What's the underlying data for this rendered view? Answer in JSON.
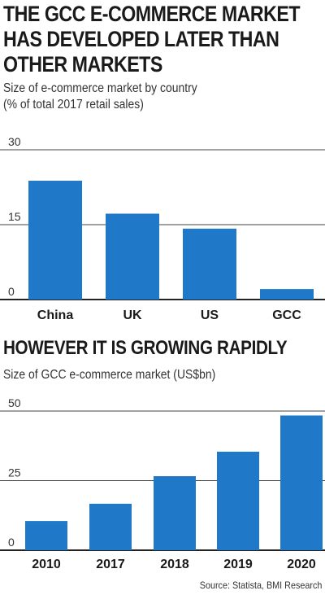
{
  "headline_lines": [
    "THE GCC E-COMMERCE MARKET",
    "HAS DEVELOPED LATER THAN",
    "OTHER MARKETS"
  ],
  "colors": {
    "bar": "#1f78c8",
    "axis": "#222222",
    "grid": "#444444",
    "text": "#1a1a1a"
  },
  "source": "Source: Statista, BMI Research",
  "chart_data": [
    {
      "type": "bar",
      "title": "",
      "subtitle_lines": [
        "Size of e-commerce market by country",
        "(% of total 2017 retail sales)"
      ],
      "categories": [
        "China",
        "UK",
        "US",
        "GCC"
      ],
      "values": [
        23.8,
        17.2,
        14.2,
        2.1
      ],
      "ylim": [
        0,
        30
      ],
      "yticks": [
        "0",
        "15",
        "30"
      ],
      "xlabel": "",
      "ylabel": "",
      "grid": true
    },
    {
      "type": "bar",
      "title": "HOWEVER IT IS GROWING RAPIDLY",
      "subtitle_lines": [
        "Size of GCC e-commerce market (US$bn)"
      ],
      "categories": [
        "2010",
        "2017",
        "2018",
        "2019",
        "2020"
      ],
      "values": [
        10.5,
        16.7,
        26.6,
        35.4,
        48.4
      ],
      "ylim": [
        0,
        50
      ],
      "yticks": [
        "0",
        "25",
        "50"
      ],
      "xlabel": "",
      "ylabel": "",
      "grid": true
    }
  ]
}
